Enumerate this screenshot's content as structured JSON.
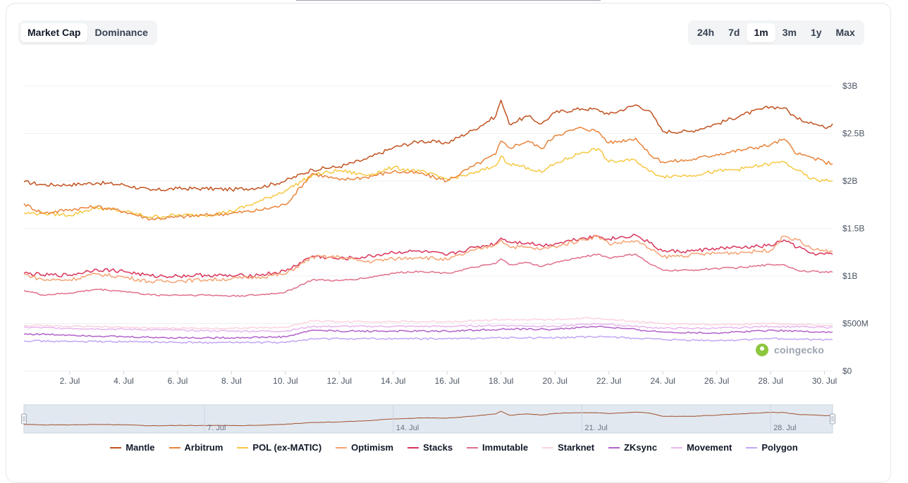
{
  "tabs_left": [
    {
      "label": "Market Cap",
      "active": true
    },
    {
      "label": "Dominance",
      "active": false
    }
  ],
  "tabs_right": [
    {
      "label": "24h",
      "active": false
    },
    {
      "label": "7d",
      "active": false
    },
    {
      "label": "1m",
      "active": true
    },
    {
      "label": "3m",
      "active": false
    },
    {
      "label": "1y",
      "active": false
    },
    {
      "label": "Max",
      "active": false
    }
  ],
  "watermark": "coingecko",
  "navigator_labels": [
    "7. Jul",
    "14. Jul",
    "21. Jul",
    "28. Jul"
  ],
  "chart_data": {
    "type": "line",
    "x_unit": "day of July",
    "xlim": [
      0.3,
      30.3
    ],
    "ylim": [
      0,
      3000
    ],
    "y_unit": "USD millions",
    "y_ticks": [
      {
        "value": 0,
        "label": "$0"
      },
      {
        "value": 500,
        "label": "$500M"
      },
      {
        "value": 1000,
        "label": "$1B"
      },
      {
        "value": 1500,
        "label": "$1.5B"
      },
      {
        "value": 2000,
        "label": "$2B"
      },
      {
        "value": 2500,
        "label": "$2.5B"
      },
      {
        "value": 3000,
        "label": "$3B"
      }
    ],
    "x_ticks": [
      {
        "value": 2,
        "label": "2. Jul"
      },
      {
        "value": 4,
        "label": "4. Jul"
      },
      {
        "value": 6,
        "label": "6. Jul"
      },
      {
        "value": 8,
        "label": "8. Jul"
      },
      {
        "value": 10,
        "label": "10. Jul"
      },
      {
        "value": 12,
        "label": "12. Jul"
      },
      {
        "value": 14,
        "label": "14. Jul"
      },
      {
        "value": 16,
        "label": "16. Jul"
      },
      {
        "value": 18,
        "label": "18. Jul"
      },
      {
        "value": 20,
        "label": "20. Jul"
      },
      {
        "value": 22,
        "label": "22. Jul"
      },
      {
        "value": 24,
        "label": "24. Jul"
      },
      {
        "value": 26,
        "label": "26. Jul"
      },
      {
        "value": 28,
        "label": "28. Jul"
      },
      {
        "value": 30,
        "label": "30. Jul"
      }
    ],
    "grid": true,
    "legend": "bottom-center",
    "series": [
      {
        "name": "Mantle",
        "color": "#c0521f",
        "x": [
          0.3,
          1,
          2,
          3,
          4,
          5,
          6,
          7,
          8,
          9,
          10,
          11,
          12,
          13,
          14,
          15,
          16,
          17,
          17.8,
          18,
          18.3,
          19,
          19.5,
          20,
          21,
          21.6,
          22,
          23,
          23.5,
          24,
          25,
          26,
          27,
          28,
          28.5,
          29,
          29.5,
          30,
          30.3
        ],
        "y": [
          1990,
          1960,
          1960,
          1980,
          1960,
          1900,
          1920,
          1920,
          1910,
          1930,
          2000,
          2120,
          2150,
          2230,
          2350,
          2420,
          2400,
          2540,
          2680,
          2850,
          2600,
          2680,
          2600,
          2720,
          2760,
          2750,
          2700,
          2800,
          2740,
          2520,
          2520,
          2600,
          2700,
          2780,
          2770,
          2650,
          2620,
          2560,
          2600
        ]
      },
      {
        "name": "Arbitrum",
        "color": "#e8833a",
        "x": [
          0.3,
          1,
          2,
          3,
          4,
          5,
          6,
          7,
          8,
          9,
          10,
          11,
          12,
          13,
          14,
          15,
          16,
          17,
          17.8,
          18,
          18.3,
          19,
          19.5,
          20,
          21,
          21.6,
          22,
          23,
          23.5,
          24,
          25,
          26,
          27,
          28,
          28.5,
          29,
          29.5,
          30,
          30.3
        ],
        "y": [
          1760,
          1660,
          1700,
          1730,
          1680,
          1600,
          1620,
          1640,
          1660,
          1690,
          1750,
          2080,
          2010,
          2040,
          2100,
          2080,
          2000,
          2160,
          2280,
          2420,
          2350,
          2420,
          2340,
          2480,
          2560,
          2520,
          2400,
          2450,
          2280,
          2200,
          2220,
          2280,
          2330,
          2380,
          2440,
          2280,
          2250,
          2200,
          2180
        ]
      },
      {
        "name": "POL (ex-MATIC)",
        "color": "#f5c842",
        "x": [
          0.3,
          1,
          2,
          3,
          4,
          5,
          6,
          7,
          8,
          9,
          10,
          11,
          12,
          13,
          14,
          15,
          16,
          17,
          17.8,
          18,
          18.3,
          19,
          19.5,
          20,
          21,
          21.6,
          22,
          23,
          23.5,
          24,
          25,
          26,
          27,
          28,
          28.5,
          29,
          29.5,
          30,
          30.3
        ],
        "y": [
          1660,
          1660,
          1640,
          1720,
          1680,
          1620,
          1640,
          1640,
          1680,
          1780,
          1900,
          2060,
          2110,
          2060,
          2140,
          2100,
          2020,
          2080,
          2160,
          2260,
          2180,
          2140,
          2090,
          2180,
          2300,
          2340,
          2200,
          2220,
          2100,
          2050,
          2060,
          2100,
          2130,
          2180,
          2200,
          2110,
          2020,
          2000,
          2000
        ]
      },
      {
        "name": "Optimism",
        "color": "#f4a373",
        "x": [
          0.3,
          1,
          2,
          3,
          4,
          5,
          6,
          7,
          8,
          9,
          10,
          11,
          12,
          13,
          14,
          15,
          16,
          17,
          17.8,
          18,
          18.3,
          19,
          19.5,
          20,
          21,
          21.6,
          22,
          23,
          23.5,
          24,
          25,
          26,
          27,
          28,
          28.5,
          29,
          29.5,
          30,
          30.3
        ],
        "y": [
          1020,
          960,
          960,
          1020,
          990,
          940,
          950,
          960,
          970,
          990,
          1020,
          1200,
          1200,
          1150,
          1180,
          1200,
          1170,
          1270,
          1330,
          1380,
          1310,
          1300,
          1280,
          1310,
          1380,
          1420,
          1340,
          1370,
          1290,
          1200,
          1220,
          1240,
          1250,
          1270,
          1420,
          1380,
          1290,
          1260,
          1260
        ]
      },
      {
        "name": "Stacks",
        "color": "#d9345a",
        "x": [
          0.3,
          1,
          2,
          3,
          4,
          5,
          6,
          7,
          8,
          9,
          10,
          11,
          12,
          13,
          14,
          15,
          16,
          17,
          17.8,
          18,
          18.3,
          19,
          19.5,
          20,
          21,
          21.6,
          22,
          23,
          23.5,
          24,
          25,
          26,
          27,
          28,
          28.5,
          29,
          29.5,
          30,
          30.3
        ],
        "y": [
          1030,
          1010,
          1010,
          1070,
          1050,
          1000,
          1000,
          1010,
          1000,
          1010,
          1050,
          1210,
          1180,
          1200,
          1250,
          1260,
          1220,
          1300,
          1340,
          1400,
          1360,
          1350,
          1320,
          1340,
          1400,
          1420,
          1390,
          1430,
          1350,
          1260,
          1260,
          1290,
          1300,
          1320,
          1380,
          1300,
          1240,
          1230,
          1230
        ]
      },
      {
        "name": "Immutable",
        "color": "#e0708c",
        "x": [
          0.3,
          1,
          2,
          3,
          4,
          5,
          6,
          7,
          8,
          9,
          10,
          11,
          12,
          13,
          14,
          15,
          16,
          17,
          17.8,
          18,
          18.3,
          19,
          19.5,
          20,
          21,
          21.6,
          22,
          23,
          23.5,
          24,
          25,
          26,
          27,
          28,
          28.5,
          29,
          29.5,
          30,
          30.3
        ],
        "y": [
          850,
          800,
          820,
          860,
          840,
          800,
          800,
          800,
          790,
          800,
          830,
          960,
          950,
          980,
          1030,
          1050,
          1030,
          1090,
          1130,
          1180,
          1120,
          1140,
          1100,
          1140,
          1200,
          1230,
          1190,
          1230,
          1130,
          1060,
          1060,
          1080,
          1090,
          1120,
          1120,
          1060,
          1050,
          1040,
          1040
        ]
      },
      {
        "name": "Starknet",
        "color": "#fbd3df",
        "x": [
          0.3,
          2,
          4,
          6,
          8,
          10,
          11,
          12,
          14,
          16,
          18,
          20,
          21.6,
          22,
          24,
          26,
          28,
          30,
          30.3
        ],
        "y": [
          480,
          470,
          460,
          450,
          450,
          460,
          530,
          520,
          520,
          520,
          540,
          540,
          560,
          540,
          500,
          490,
          500,
          480,
          480
        ]
      },
      {
        "name": "ZKsync",
        "color": "#b262c9",
        "x": [
          0.3,
          2,
          4,
          6,
          8,
          10,
          11,
          12,
          14,
          16,
          18,
          20,
          21.6,
          22,
          24,
          26,
          28,
          30,
          30.3
        ],
        "y": [
          390,
          380,
          360,
          350,
          350,
          360,
          430,
          420,
          420,
          420,
          440,
          440,
          470,
          460,
          410,
          400,
          430,
          410,
          410
        ]
      },
      {
        "name": "Movement",
        "color": "#e7b6ee",
        "x": [
          0.3,
          2,
          4,
          6,
          8,
          10,
          11,
          12,
          14,
          16,
          18,
          20,
          21.6,
          22,
          24,
          26,
          28,
          30,
          30.3
        ],
        "y": [
          460,
          450,
          440,
          430,
          420,
          420,
          470,
          470,
          470,
          470,
          480,
          470,
          500,
          490,
          450,
          450,
          470,
          460,
          460
        ]
      },
      {
        "name": "Polygon",
        "color": "#c0a6f5",
        "x": [
          0.3,
          2,
          4,
          6,
          8,
          10,
          11,
          12,
          14,
          16,
          18,
          20,
          21.6,
          22,
          24,
          26,
          28,
          30,
          30.3
        ],
        "y": [
          320,
          310,
          310,
          300,
          300,
          300,
          340,
          340,
          340,
          340,
          350,
          350,
          360,
          360,
          330,
          320,
          340,
          330,
          330
        ]
      }
    ]
  }
}
